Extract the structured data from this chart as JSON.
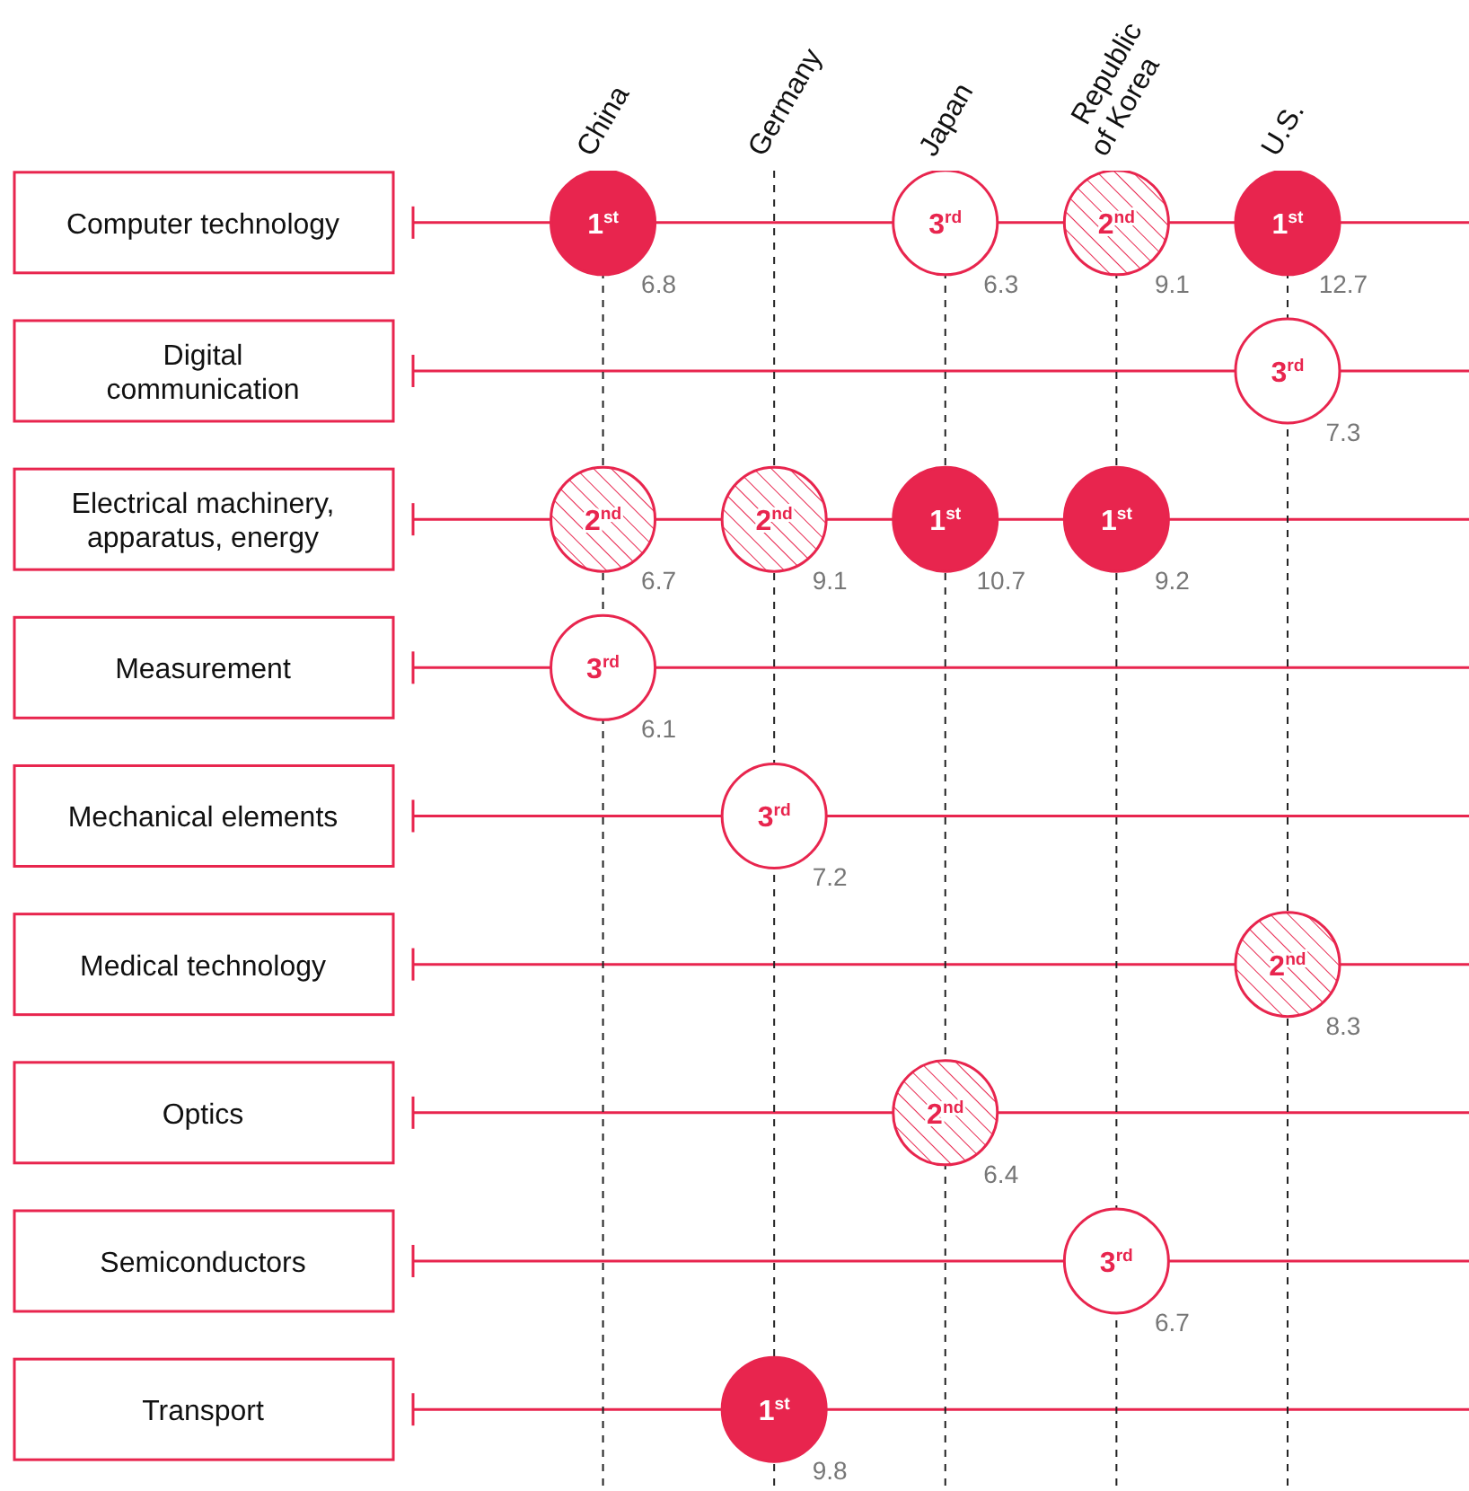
{
  "chart_data": {
    "type": "heatmap",
    "color": "#e8254e",
    "grid": true,
    "data_labels": true,
    "categories": [
      "China",
      "Germany",
      "Japan",
      "Republic of Korea",
      "U.S."
    ],
    "y_categories": [
      "Computer technology",
      "Digital communication",
      "Electrical machinery, apparatus, energy",
      "Measurement",
      "Mechanical elements",
      "Medical technology",
      "Optics",
      "Semiconductors",
      "Transport"
    ],
    "cells": [
      [
        6.8,
        null,
        6.3,
        9.1,
        12.7
      ],
      [
        null,
        null,
        null,
        null,
        7.3
      ],
      [
        6.7,
        9.1,
        10.7,
        9.2,
        null
      ],
      [
        6.1,
        null,
        null,
        null,
        null
      ],
      [
        null,
        7.2,
        null,
        null,
        null
      ],
      [
        null,
        null,
        null,
        null,
        8.3
      ],
      [
        null,
        null,
        6.4,
        null,
        null
      ],
      [
        null,
        null,
        null,
        6.7,
        null
      ],
      [
        null,
        9.8,
        null,
        null,
        null
      ]
    ],
    "annotations": [
      "1$^{st}$",
      "3$^{rd}$",
      "2$^{nd}$",
      "1$^{st}$",
      "3$^{rd}$",
      "2$^{nd}$",
      "2$^{nd}$",
      "1$^{st}$",
      "1$^{st}$",
      "3$^{rd}$",
      "3$^{rd}$",
      "2$^{nd}$",
      "2$^{nd}$",
      "3$^{rd}$",
      "1$^{st}$"
    ]
  }
}
